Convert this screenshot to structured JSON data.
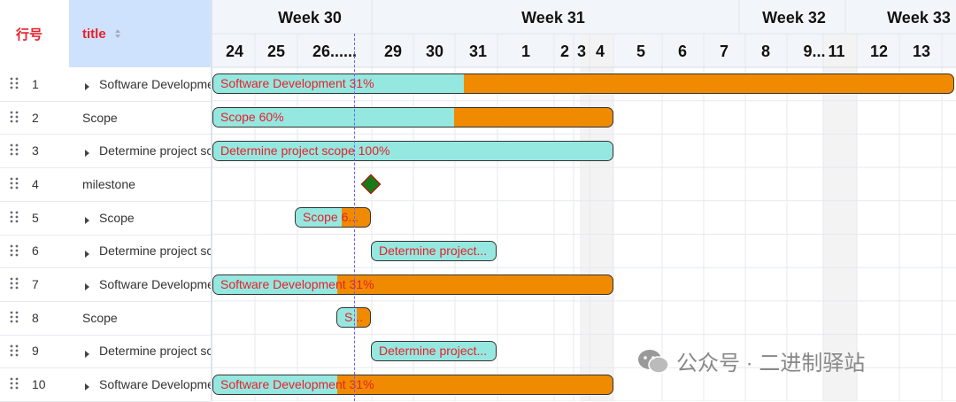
{
  "table": {
    "headers": [
      "行号",
      "title"
    ],
    "rows": [
      {
        "index": 1,
        "title": "Software Development",
        "expandable": true
      },
      {
        "index": 2,
        "title": "Scope",
        "expandable": false
      },
      {
        "index": 3,
        "title": "Determine project scope",
        "expandable": true
      },
      {
        "index": 4,
        "title": "milestone",
        "expandable": false
      },
      {
        "index": 5,
        "title": "Scope",
        "expandable": true
      },
      {
        "index": 6,
        "title": "Determine project scope",
        "expandable": true
      },
      {
        "index": 7,
        "title": "Software Development",
        "expandable": true
      },
      {
        "index": 8,
        "title": "Scope",
        "expandable": false
      },
      {
        "index": 9,
        "title": "Determine project scope",
        "expandable": true
      },
      {
        "index": 10,
        "title": "Software Development",
        "expandable": true
      }
    ]
  },
  "timeline": {
    "weeks": [
      "Week 30",
      "Week 31",
      "Week 32",
      "Week 33"
    ],
    "days": [
      "24",
      "25",
      "26......",
      "29",
      "30",
      "31",
      "1",
      "2",
      "3",
      "4",
      "5",
      "6",
      "7",
      "8",
      "9...",
      "11",
      "12",
      "13"
    ]
  },
  "bars": [
    {
      "kind": "task",
      "label": "Software Development 31%"
    },
    {
      "kind": "task",
      "label": "Scope 60%"
    },
    {
      "kind": "task",
      "label": "Determine project scope 100%"
    },
    {
      "kind": "milestone"
    },
    {
      "kind": "task",
      "label": "Scope 6..."
    },
    {
      "kind": "task",
      "label": "Determine project..."
    },
    {
      "kind": "task",
      "label": "Software Development 31%"
    },
    {
      "kind": "task",
      "label": "S..."
    },
    {
      "kind": "task",
      "label": "Determine project..."
    },
    {
      "kind": "task",
      "label": "Software Development 31%"
    }
  ],
  "watermark": "公众号 · 二进制驿站"
}
